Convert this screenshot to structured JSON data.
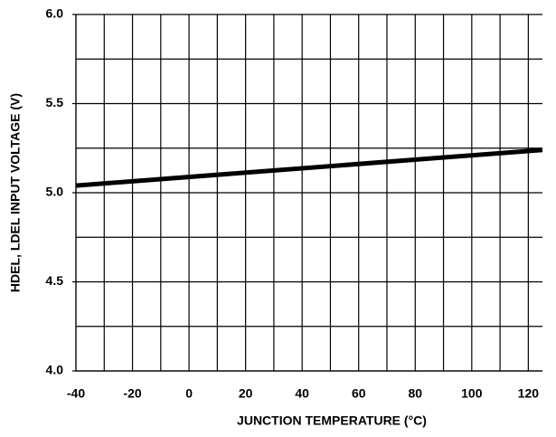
{
  "chart_data": {
    "type": "line",
    "x_label": "JUNCTION TEMPERATURE (°C)",
    "y_label": "HDEL, LDEL INPUT VOLTAGE (V)",
    "x": [
      -40,
      125
    ],
    "series": [
      {
        "color": "#000000",
        "values": [
          5.04,
          5.24
        ]
      }
    ],
    "xlim": [
      -40,
      125
    ],
    "xticks": [
      -40,
      -20,
      0,
      20,
      40,
      60,
      80,
      100,
      120
    ],
    "xgrid": [
      -40,
      -30,
      -20,
      -10,
      0,
      10,
      20,
      30,
      40,
      50,
      60,
      70,
      80,
      90,
      100,
      110,
      120
    ],
    "ylim": [
      4.0,
      6.0
    ],
    "yticks": [
      {
        "value": 4.0,
        "label": "4.0"
      },
      {
        "value": 4.5,
        "label": "4.5"
      },
      {
        "value": 5.0,
        "label": "5.0"
      },
      {
        "value": 5.5,
        "label": "5.5"
      },
      {
        "value": 6.0,
        "label": "6.0"
      }
    ],
    "ygrid": [
      4.0,
      4.25,
      4.5,
      4.75,
      5.0,
      5.25,
      5.5,
      5.75,
      6.0
    ],
    "grid": true
  }
}
